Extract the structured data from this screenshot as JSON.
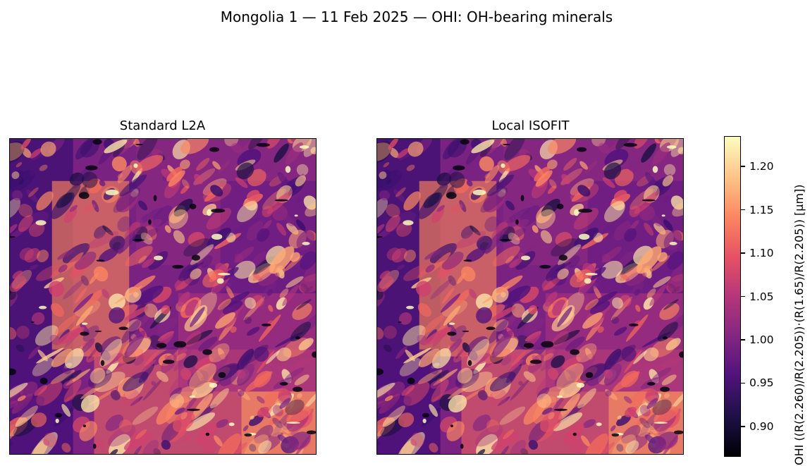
{
  "figure": {
    "title": "Mongolia 1 — 11 Feb 2025 — OHI: OH-bearing minerals"
  },
  "panels": [
    {
      "title": "Standard L2A",
      "seed": 7
    },
    {
      "title": "Local ISOFIT",
      "seed": 7
    }
  ],
  "colorbar": {
    "colormap": "magma",
    "range": [
      0.865,
      1.235
    ],
    "ticks": [
      "0.90",
      "0.95",
      "1.00",
      "1.05",
      "1.10",
      "1.15",
      "1.20"
    ],
    "label": "OHI  ((R(2.260)/R(2.205))·(R(1.65)/R(2.205))  [μm])"
  }
}
